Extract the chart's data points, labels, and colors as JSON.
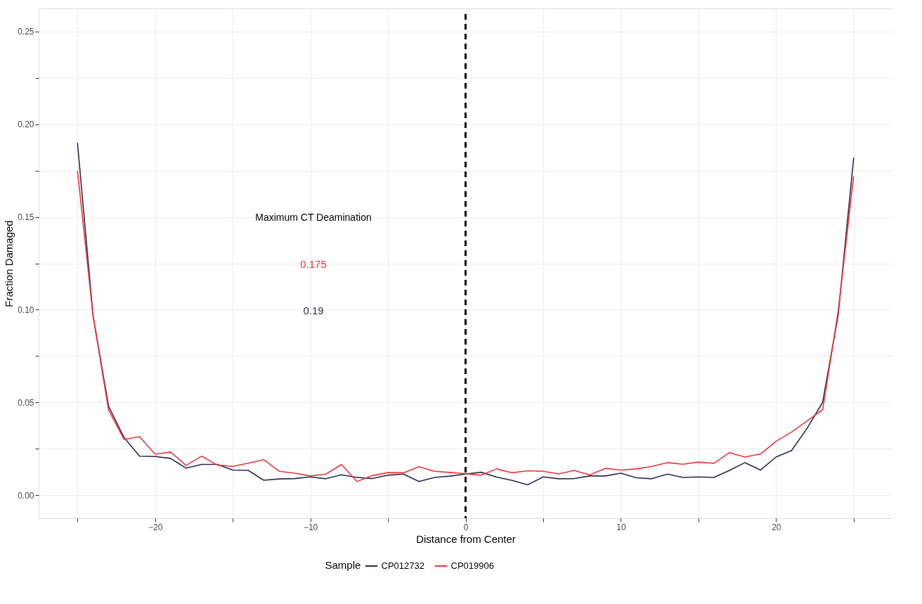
{
  "chart_data": {
    "type": "line",
    "xlabel": "Distance from Center",
    "ylabel": "Fraction Damaged",
    "legend_title": "Sample",
    "x": [
      -25,
      -24,
      -23,
      -22,
      -21,
      -20,
      -19,
      -18,
      -17,
      -16,
      -15,
      -14,
      -13,
      -12,
      -11,
      -10,
      -9,
      -8,
      -7,
      -6,
      -5,
      -4,
      -3,
      -2,
      -1,
      0,
      1,
      2,
      3,
      4,
      5,
      6,
      7,
      8,
      9,
      10,
      11,
      12,
      13,
      14,
      15,
      16,
      17,
      18,
      19,
      20,
      21,
      22,
      23,
      24,
      25
    ],
    "series": [
      {
        "name": "CP012732",
        "color": "#2b2a4c",
        "values": [
          0.19,
          0.097,
          0.048,
          0.031,
          0.021,
          0.0208,
          0.0198,
          0.0145,
          0.0165,
          0.0165,
          0.0135,
          0.0133,
          0.008,
          0.0087,
          0.0089,
          0.0098,
          0.0088,
          0.0109,
          0.0095,
          0.0089,
          0.0107,
          0.0113,
          0.0073,
          0.0095,
          0.0102,
          0.0113,
          0.0123,
          0.0097,
          0.0079,
          0.0055,
          0.0098,
          0.0088,
          0.0089,
          0.0103,
          0.0103,
          0.0118,
          0.0093,
          0.0088,
          0.0113,
          0.0095,
          0.0098,
          0.0095,
          0.0133,
          0.0175,
          0.0135,
          0.0205,
          0.024,
          0.036,
          0.05,
          0.097,
          0.182
        ]
      },
      {
        "name": "CP019906",
        "color": "#f0323c",
        "values": [
          0.175,
          0.097,
          0.046,
          0.03,
          0.0315,
          0.022,
          0.0232,
          0.016,
          0.021,
          0.0162,
          0.0155,
          0.0172,
          0.0191,
          0.0128,
          0.0118,
          0.0103,
          0.0113,
          0.0165,
          0.0073,
          0.0105,
          0.0121,
          0.012,
          0.0153,
          0.0128,
          0.0122,
          0.0115,
          0.0107,
          0.0141,
          0.012,
          0.0131,
          0.0128,
          0.0114,
          0.0133,
          0.0108,
          0.0144,
          0.0135,
          0.0141,
          0.0155,
          0.0175,
          0.0166,
          0.0178,
          0.0171,
          0.0229,
          0.0205,
          0.0222,
          0.029,
          0.034,
          0.04,
          0.046,
          0.099,
          0.172
        ]
      }
    ],
    "xlim": [
      -27.5,
      27.5
    ],
    "xticks": [
      {
        "value": -25,
        "label": null
      },
      -20,
      {
        "value": -15,
        "label": null
      },
      -10,
      {
        "value": -5,
        "label": null
      },
      0,
      {
        "value": 5,
        "label": null
      },
      10,
      {
        "value": 15,
        "label": null
      },
      20,
      {
        "value": 25,
        "label": null
      }
    ],
    "ylim": [
      -0.0125,
      0.2625
    ],
    "yticks": [
      {
        "value": 0,
        "label": "0.00"
      },
      {
        "value": 0.025,
        "label": null
      },
      {
        "value": 0.05,
        "label": "0.05"
      },
      {
        "value": 0.075,
        "label": null
      },
      {
        "value": 0.1,
        "label": "0.10"
      },
      {
        "value": 0.125,
        "label": null
      },
      {
        "value": 0.15,
        "label": "0.15"
      },
      {
        "value": 0.175,
        "label": null
      },
      {
        "value": 0.2,
        "label": "0.20"
      },
      {
        "value": 0.225,
        "label": null
      },
      {
        "value": 0.25,
        "label": "0.25"
      }
    ],
    "ref_lines": [
      {
        "axis": "x",
        "value": 0,
        "color": "#000000",
        "line_style": "dashed"
      }
    ],
    "annotations": [
      "Maximum CT Deamination",
      "0.175",
      "0.19"
    ],
    "grid": true,
    "legend": "bottom",
    "marker": "none",
    "line_style": "solid"
  }
}
